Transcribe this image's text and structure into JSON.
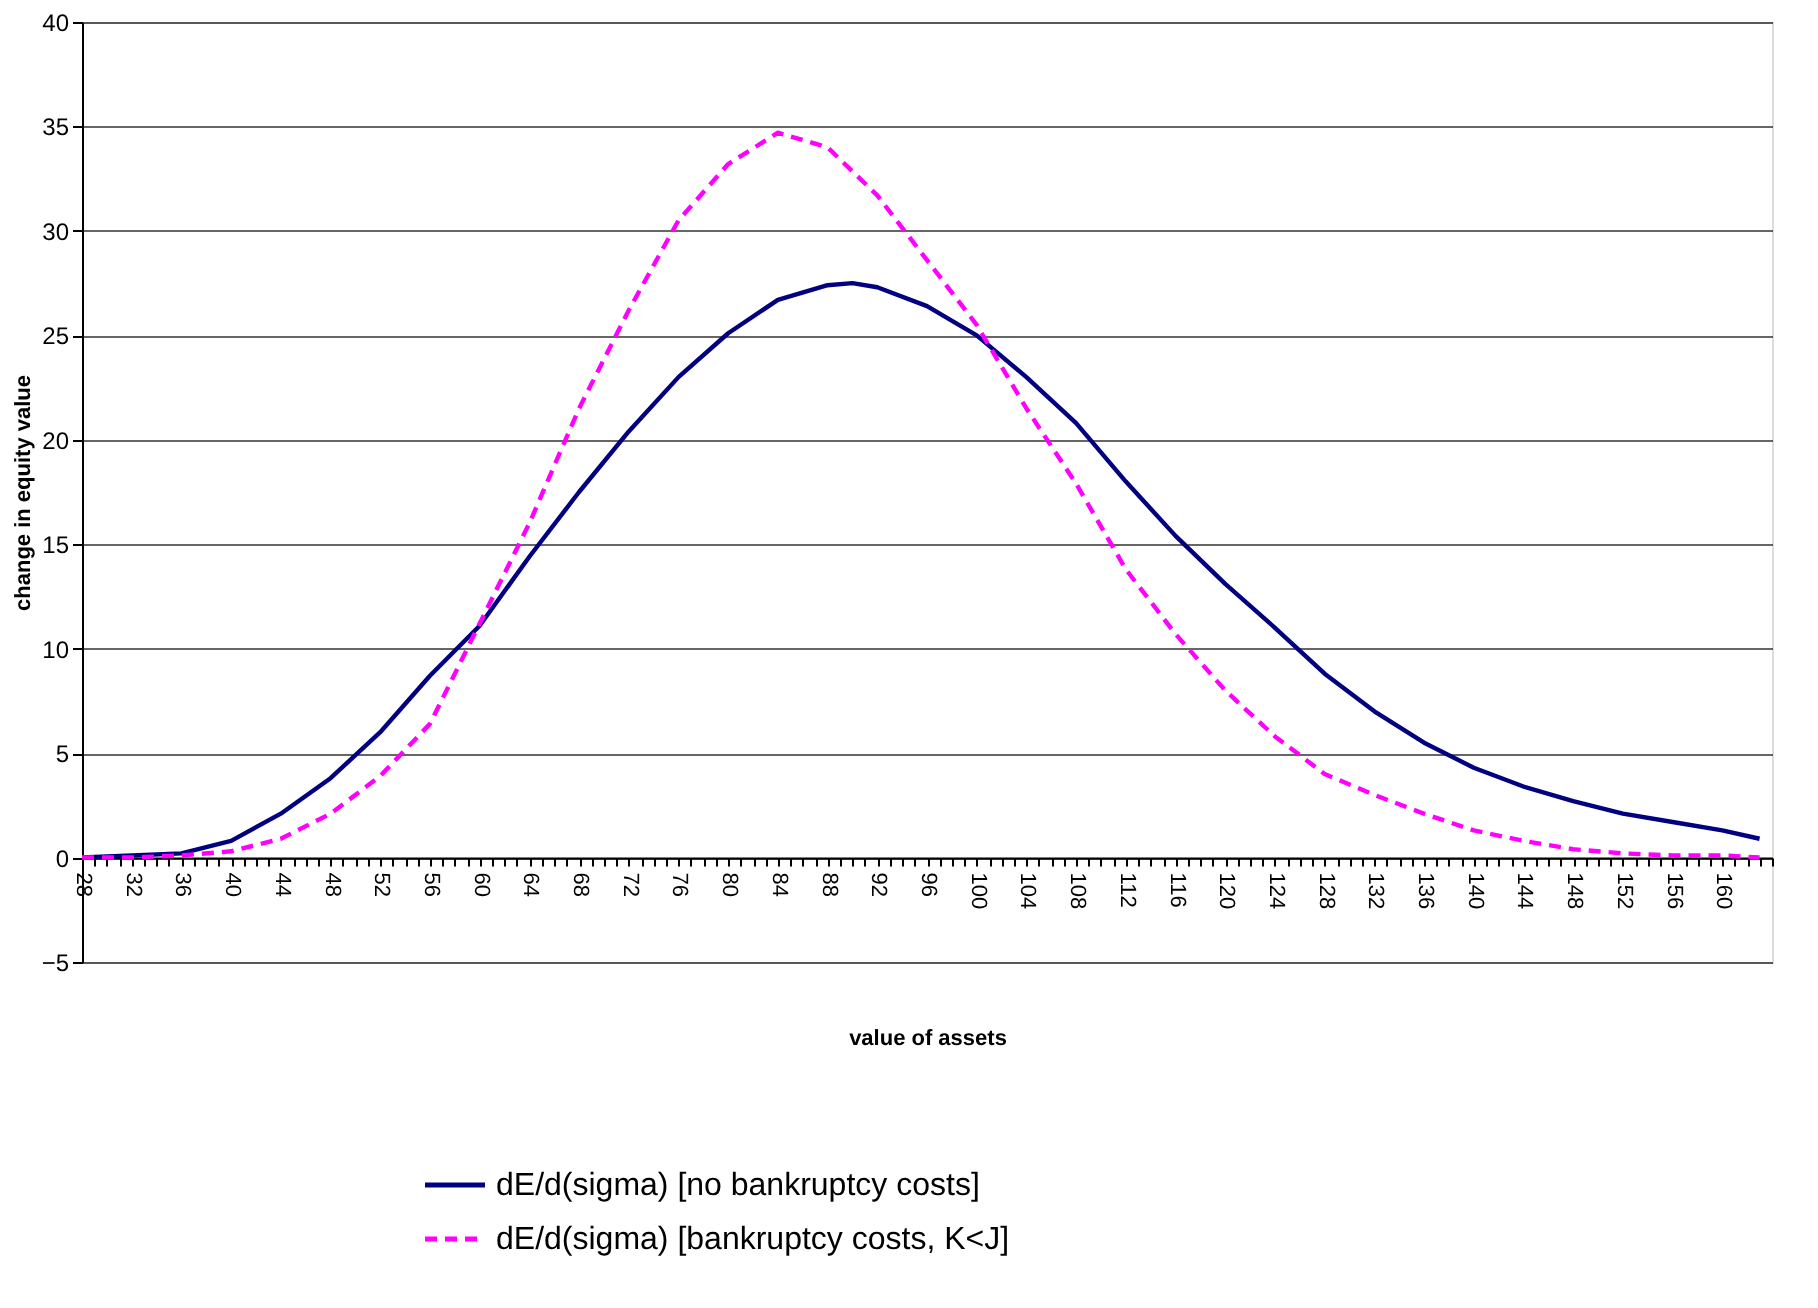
{
  "chart_data": {
    "type": "line",
    "xlabel": "value of assets",
    "ylabel": "change in equity value",
    "xlim": [
      28,
      164
    ],
    "ylim": [
      -5,
      40
    ],
    "yticks": [
      -5,
      0,
      5,
      10,
      15,
      20,
      25,
      30,
      35,
      40
    ],
    "xticks": [
      28,
      {
        "value": 29,
        "label": null
      },
      {
        "value": 30,
        "label": null
      },
      {
        "value": 31,
        "label": null
      },
      32,
      {
        "value": 33,
        "label": null
      },
      {
        "value": 34,
        "label": null
      },
      {
        "value": 35,
        "label": null
      },
      36,
      {
        "value": 37,
        "label": null
      },
      {
        "value": 38,
        "label": null
      },
      {
        "value": 39,
        "label": null
      },
      40,
      {
        "value": 41,
        "label": null
      },
      {
        "value": 42,
        "label": null
      },
      {
        "value": 43,
        "label": null
      },
      44,
      {
        "value": 45,
        "label": null
      },
      {
        "value": 46,
        "label": null
      },
      {
        "value": 47,
        "label": null
      },
      48,
      {
        "value": 49,
        "label": null
      },
      {
        "value": 50,
        "label": null
      },
      {
        "value": 51,
        "label": null
      },
      52,
      {
        "value": 53,
        "label": null
      },
      {
        "value": 54,
        "label": null
      },
      {
        "value": 55,
        "label": null
      },
      56,
      {
        "value": 57,
        "label": null
      },
      {
        "value": 58,
        "label": null
      },
      {
        "value": 59,
        "label": null
      },
      60,
      {
        "value": 61,
        "label": null
      },
      {
        "value": 62,
        "label": null
      },
      {
        "value": 63,
        "label": null
      },
      64,
      {
        "value": 65,
        "label": null
      },
      {
        "value": 66,
        "label": null
      },
      {
        "value": 67,
        "label": null
      },
      68,
      {
        "value": 69,
        "label": null
      },
      {
        "value": 70,
        "label": null
      },
      {
        "value": 71,
        "label": null
      },
      72,
      {
        "value": 73,
        "label": null
      },
      {
        "value": 74,
        "label": null
      },
      {
        "value": 75,
        "label": null
      },
      76,
      {
        "value": 77,
        "label": null
      },
      {
        "value": 78,
        "label": null
      },
      {
        "value": 79,
        "label": null
      },
      80,
      {
        "value": 81,
        "label": null
      },
      {
        "value": 82,
        "label": null
      },
      {
        "value": 83,
        "label": null
      },
      84,
      {
        "value": 85,
        "label": null
      },
      {
        "value": 86,
        "label": null
      },
      {
        "value": 87,
        "label": null
      },
      88,
      {
        "value": 89,
        "label": null
      },
      {
        "value": 90,
        "label": null
      },
      {
        "value": 91,
        "label": null
      },
      92,
      {
        "value": 93,
        "label": null
      },
      {
        "value": 94,
        "label": null
      },
      {
        "value": 95,
        "label": null
      },
      96,
      {
        "value": 97,
        "label": null
      },
      {
        "value": 98,
        "label": null
      },
      {
        "value": 99,
        "label": null
      },
      100,
      {
        "value": 101,
        "label": null
      },
      {
        "value": 102,
        "label": null
      },
      {
        "value": 103,
        "label": null
      },
      104,
      {
        "value": 105,
        "label": null
      },
      {
        "value": 106,
        "label": null
      },
      {
        "value": 107,
        "label": null
      },
      108,
      {
        "value": 109,
        "label": null
      },
      {
        "value": 110,
        "label": null
      },
      {
        "value": 111,
        "label": null
      },
      112,
      {
        "value": 113,
        "label": null
      },
      {
        "value": 114,
        "label": null
      },
      {
        "value": 115,
        "label": null
      },
      116,
      {
        "value": 117,
        "label": null
      },
      {
        "value": 118,
        "label": null
      },
      {
        "value": 119,
        "label": null
      },
      120,
      {
        "value": 121,
        "label": null
      },
      {
        "value": 122,
        "label": null
      },
      {
        "value": 123,
        "label": null
      },
      124,
      {
        "value": 125,
        "label": null
      },
      {
        "value": 126,
        "label": null
      },
      {
        "value": 127,
        "label": null
      },
      128,
      {
        "value": 129,
        "label": null
      },
      {
        "value": 130,
        "label": null
      },
      {
        "value": 131,
        "label": null
      },
      132,
      {
        "value": 133,
        "label": null
      },
      {
        "value": 134,
        "label": null
      },
      {
        "value": 135,
        "label": null
      },
      136,
      {
        "value": 137,
        "label": null
      },
      {
        "value": 138,
        "label": null
      },
      {
        "value": 139,
        "label": null
      },
      140,
      {
        "value": 141,
        "label": null
      },
      {
        "value": 142,
        "label": null
      },
      {
        "value": 143,
        "label": null
      },
      144,
      {
        "value": 145,
        "label": null
      },
      {
        "value": 146,
        "label": null
      },
      {
        "value": 147,
        "label": null
      },
      148,
      {
        "value": 149,
        "label": null
      },
      {
        "value": 150,
        "label": null
      },
      {
        "value": 151,
        "label": null
      },
      152,
      {
        "value": 153,
        "label": null
      },
      {
        "value": 154,
        "label": null
      },
      {
        "value": 155,
        "label": null
      },
      156,
      {
        "value": 157,
        "label": null
      },
      {
        "value": 158,
        "label": null
      },
      {
        "value": 159,
        "label": null
      },
      160,
      {
        "value": 161,
        "label": null
      },
      {
        "value": 162,
        "label": null
      },
      {
        "value": 163,
        "label": null
      },
      {
        "value": 164,
        "label": null
      }
    ],
    "grid": "y",
    "legend": "bottom",
    "marker": "none",
    "series": [
      {
        "name": "dE/d(sigma) [no bankruptcy costs]",
        "color": "#000080",
        "line_style": "solid",
        "x": [
          28,
          32,
          36,
          40,
          44,
          48,
          52,
          56,
          60,
          64,
          68,
          72,
          76,
          80,
          84,
          88,
          90,
          92,
          96,
          100,
          104,
          108,
          112,
          116,
          120,
          124,
          128,
          132,
          136,
          140,
          144,
          148,
          152,
          156,
          160,
          163
        ],
        "values": [
          0,
          0.1,
          0.2,
          0.8,
          2.1,
          3.8,
          6.0,
          8.7,
          11.1,
          14.4,
          17.5,
          20.4,
          23.0,
          25.1,
          26.7,
          27.4,
          27.5,
          27.3,
          26.4,
          25.0,
          23.0,
          20.8,
          18.0,
          15.4,
          13.1,
          11.0,
          8.8,
          7.0,
          5.5,
          4.3,
          3.4,
          2.7,
          2.1,
          1.7,
          1.3,
          0.9
        ]
      },
      {
        "name": "dE/d(sigma) [bankruptcy costs, K<J]",
        "color": "#ff00ff",
        "line_style": "dashed",
        "x": [
          28,
          32,
          36,
          40,
          44,
          48,
          52,
          56,
          60,
          64,
          68,
          72,
          76,
          80,
          84,
          88,
          92,
          96,
          100,
          104,
          108,
          112,
          116,
          120,
          124,
          128,
          132,
          136,
          140,
          144,
          148,
          152,
          156,
          160,
          163
        ],
        "values": [
          0,
          0,
          0.1,
          0.3,
          0.9,
          2.1,
          3.9,
          6.4,
          11.2,
          16.0,
          21.5,
          26.2,
          30.5,
          33.2,
          34.7,
          34.0,
          31.7,
          28.6,
          25.5,
          21.5,
          17.9,
          13.8,
          10.7,
          8.0,
          5.8,
          4.0,
          3.0,
          2.1,
          1.3,
          0.8,
          0.4,
          0.2,
          0.1,
          0.1,
          0
        ]
      }
    ]
  }
}
